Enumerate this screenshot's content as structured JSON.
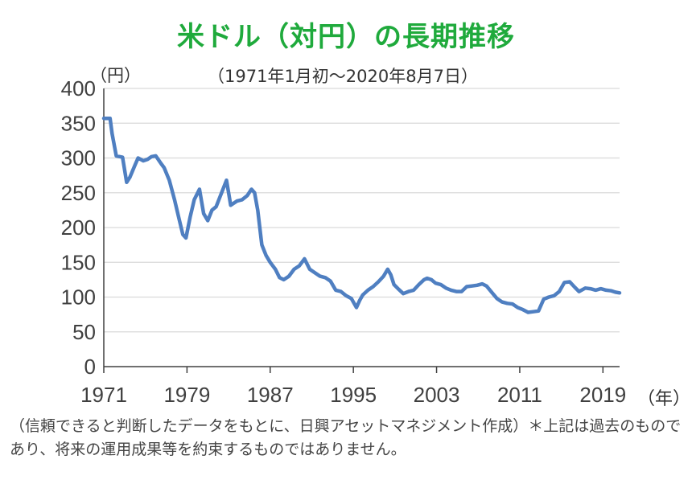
{
  "header": {
    "title": "米ドル（対円）の長期推移",
    "unit": "（円）",
    "subtitle": "（1971年1月初～2020年8月7日）",
    "x_unit": "（年）"
  },
  "footnote": "（信頼できると判断したデータをもとに、日興アセットマネジメント作成）＊上記は過去のものであり、将来の運用成果等を約束するものではありません。",
  "colors": {
    "line": "#4f7fc1",
    "grid": "#d9d9d9",
    "axis": "#404040",
    "title": "#1faa3c"
  },
  "chart_data": {
    "type": "line",
    "ylim": [
      0,
      400
    ],
    "yticks": [
      0,
      50,
      100,
      150,
      200,
      250,
      300,
      350,
      400
    ],
    "xlim": [
      1971.0,
      2020.6
    ],
    "xticks": [
      1971,
      1979,
      1987,
      1995,
      2003,
      2011,
      2019
    ],
    "grid": true,
    "series": [
      {
        "x": [
          1971.0,
          1971.6,
          1971.8,
          1972.2,
          1972.8,
          1973.2,
          1973.5,
          1974.0,
          1974.3,
          1974.8,
          1975.2,
          1975.6,
          1976.0,
          1976.5,
          1976.8,
          1977.3,
          1977.8,
          1978.2,
          1978.6,
          1978.9,
          1979.3,
          1979.7,
          1980.2,
          1980.6,
          1981.0,
          1981.4,
          1981.8,
          1982.2,
          1982.8,
          1983.2,
          1983.8,
          1984.3,
          1984.8,
          1985.2,
          1985.5,
          1985.8,
          1986.2,
          1986.6,
          1987.0,
          1987.5,
          1987.9,
          1988.3,
          1988.8,
          1989.3,
          1989.8,
          1990.3,
          1990.8,
          1991.3,
          1991.8,
          1992.3,
          1992.8,
          1993.3,
          1993.8,
          1994.3,
          1994.8,
          1995.3,
          1995.6,
          1995.9,
          1996.4,
          1996.9,
          1997.4,
          1997.9,
          1998.3,
          1998.6,
          1998.9,
          1999.3,
          1999.8,
          2000.3,
          2000.8,
          2001.3,
          2001.8,
          2002.1,
          2002.5,
          2002.9,
          2003.4,
          2003.9,
          2004.4,
          2004.9,
          2005.4,
          2005.9,
          2006.4,
          2006.9,
          2007.4,
          2007.8,
          2008.3,
          2008.8,
          2009.3,
          2009.8,
          2010.3,
          2010.8,
          2011.3,
          2011.8,
          2012.3,
          2012.8,
          2013.3,
          2013.8,
          2014.3,
          2014.8,
          2015.3,
          2015.8,
          2016.3,
          2016.7,
          2017.3,
          2017.8,
          2018.3,
          2018.8,
          2019.3,
          2019.8,
          2020.2,
          2020.6
        ],
        "values": [
          357,
          357,
          335,
          303,
          301,
          265,
          272,
          290,
          300,
          296,
          298,
          302,
          303,
          292,
          286,
          268,
          240,
          215,
          190,
          185,
          215,
          240,
          255,
          220,
          210,
          225,
          230,
          245,
          268,
          232,
          238,
          240,
          246,
          255,
          250,
          225,
          175,
          160,
          150,
          140,
          128,
          125,
          130,
          140,
          145,
          155,
          140,
          135,
          130,
          128,
          123,
          110,
          108,
          102,
          98,
          85,
          95,
          103,
          110,
          115,
          122,
          130,
          140,
          132,
          118,
          112,
          105,
          108,
          110,
          118,
          125,
          127,
          125,
          120,
          118,
          113,
          110,
          108,
          108,
          115,
          116,
          117,
          119,
          116,
          107,
          98,
          93,
          91,
          90,
          85,
          82,
          78,
          79,
          80,
          97,
          100,
          102,
          108,
          121,
          122,
          114,
          108,
          113,
          112,
          110,
          112,
          110,
          109,
          107,
          106
        ]
      }
    ]
  }
}
